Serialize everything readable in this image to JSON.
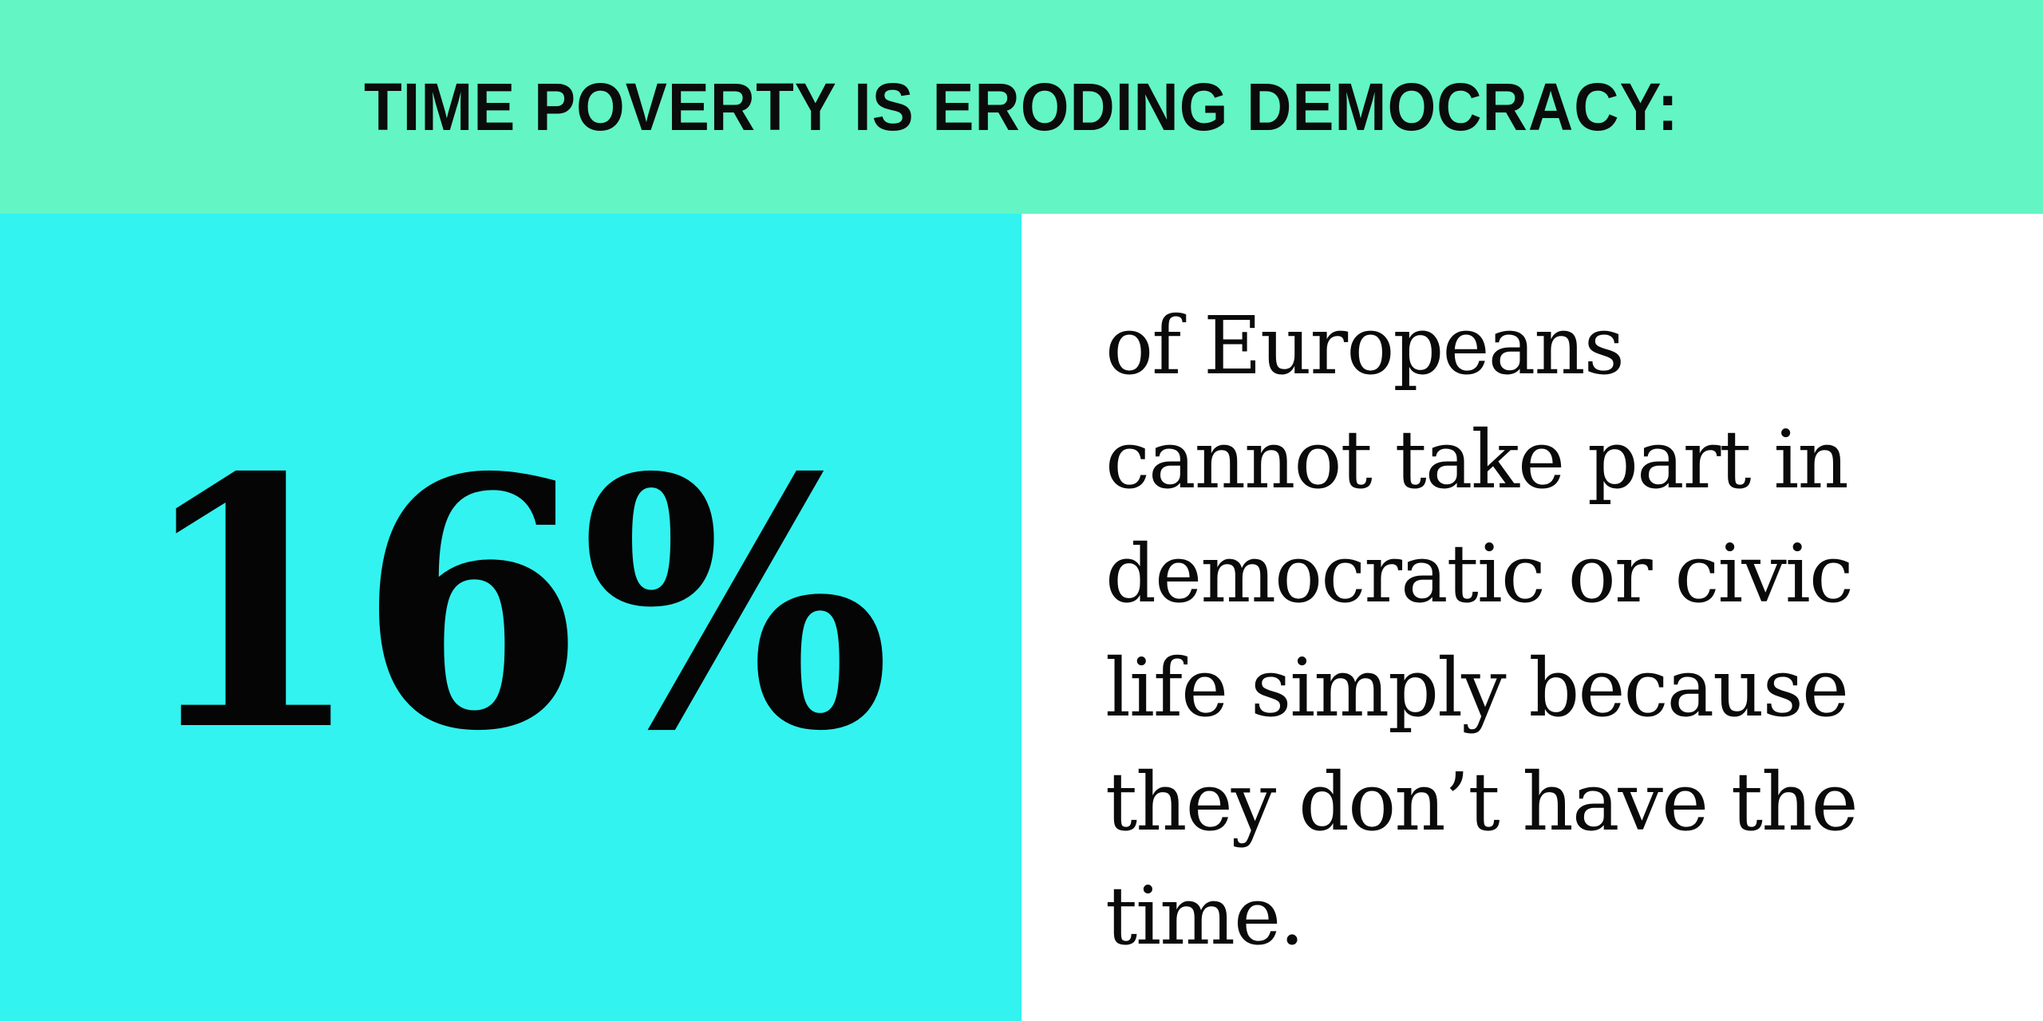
{
  "banner": {
    "title": "TIME POVERTY IS ERODING DEMOCRACY:",
    "background_color": "#63f5c4"
  },
  "stat": {
    "value": "16%",
    "background_color": "#32f3f0"
  },
  "description": {
    "text": "of Europeans\ncannot take part in\ndemocratic or civic\nlife simply because\nthey don’t have the\ntime."
  }
}
